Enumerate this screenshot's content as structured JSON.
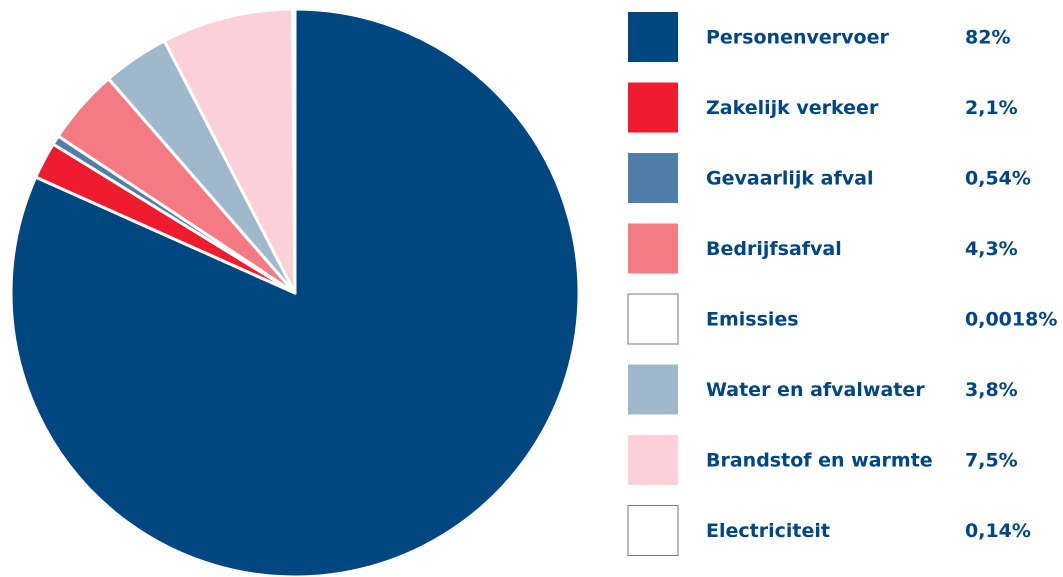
{
  "chart_data": {
    "type": "pie",
    "categories": [
      "Personenvervoer",
      "Zakelijk verkeer",
      "Gevaarlijk afval",
      "Bedrijfsafval",
      "Emissies",
      "Water en afvalwater",
      "Brandstof en warmte",
      "Electriciteit"
    ],
    "values": [
      82,
      2.1,
      0.54,
      4.3,
      0.0018,
      3.8,
      7.5,
      0.14
    ],
    "value_labels": [
      "82%",
      "2,1%",
      "0,54%",
      "4,3%",
      "0,0018%",
      "3,8%",
      "7,5%",
      "0,14%"
    ],
    "colors": [
      "#004680",
      "#ee1c2e",
      "#4f7fa8",
      "#f47a84",
      "#ffffff",
      "#a0b8cc",
      "#fbd0d8",
      "#ffffff"
    ],
    "legend": "right"
  }
}
